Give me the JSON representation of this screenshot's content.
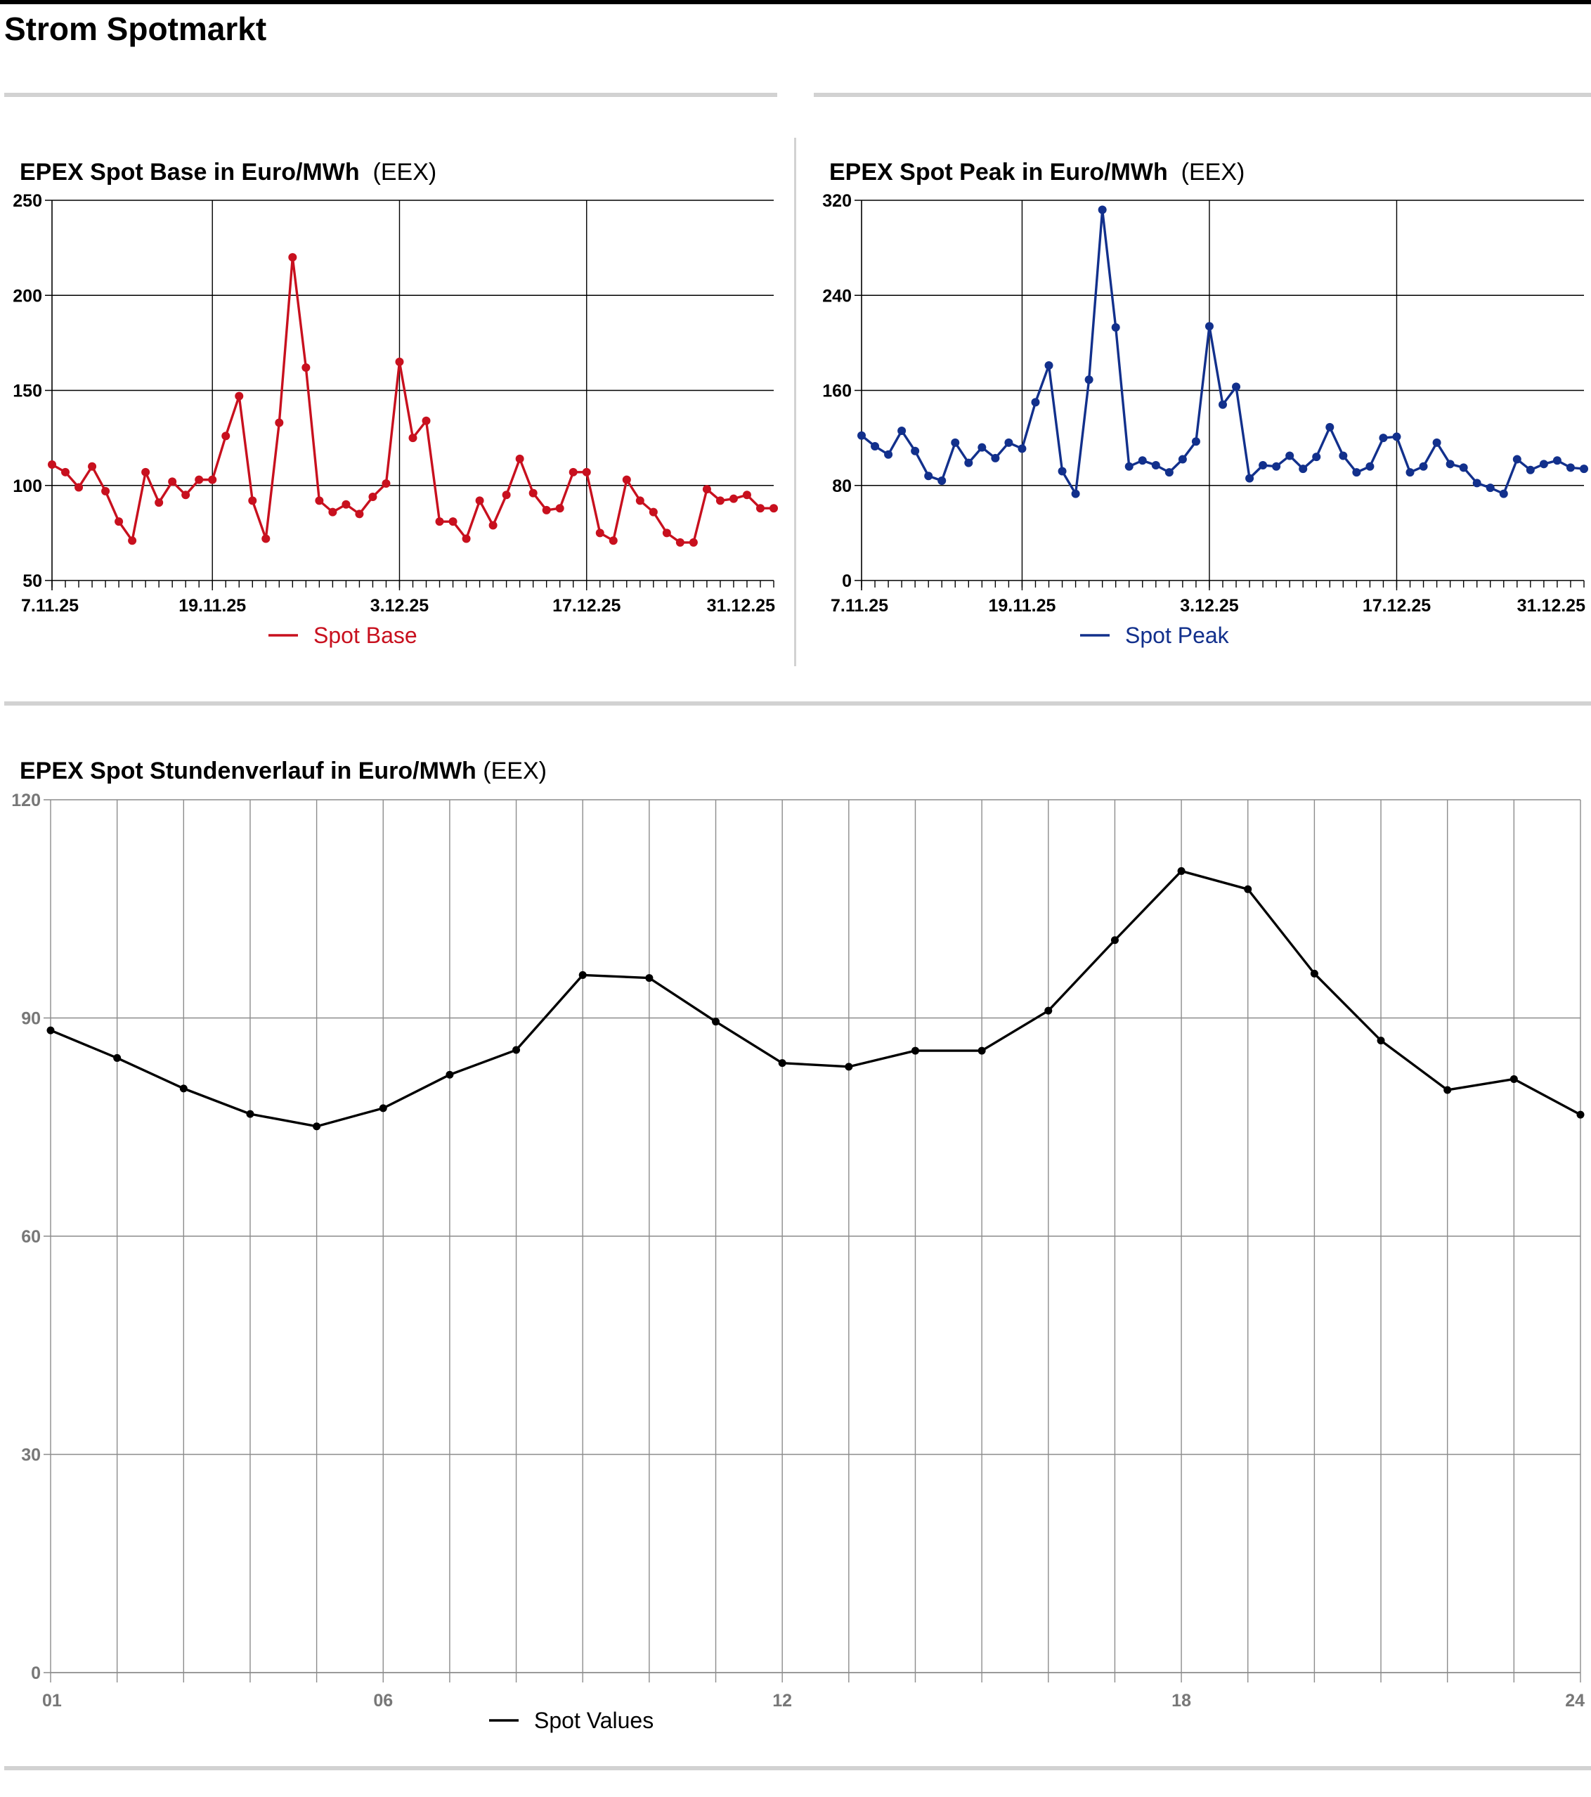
{
  "page_title": "Strom Spotmarkt",
  "colors": {
    "base": "#c8101e",
    "peak": "#12308c",
    "hourly": "#000000"
  },
  "chart_data": [
    {
      "id": "base",
      "type": "line",
      "title": "EPEX Spot Base in Euro/MWh",
      "source": "(EEX)",
      "x_tick_labels": [
        "7.11.25",
        "19.11.25",
        "3.12.25",
        "17.12.25",
        "31.12.25"
      ],
      "x_tick_index": [
        0,
        12,
        26,
        40,
        54
      ],
      "ylim": [
        50,
        250
      ],
      "yticks": [
        50,
        100,
        150,
        200,
        250
      ],
      "legend_position": "bottom",
      "series": [
        {
          "name": "Spot Base",
          "values": [
            111,
            107,
            99,
            110,
            97,
            81,
            71,
            107,
            91,
            102,
            95,
            103,
            103,
            126,
            147,
            92,
            72,
            133,
            220,
            162,
            92,
            86,
            90,
            85,
            94,
            101,
            165,
            125,
            134,
            81,
            81,
            72,
            92,
            79,
            95,
            114,
            96,
            87,
            88,
            107,
            107,
            75,
            71,
            103,
            92,
            86,
            75,
            70,
            70,
            98,
            92,
            93,
            95,
            88,
            88
          ]
        }
      ]
    },
    {
      "id": "peak",
      "type": "line",
      "title": "EPEX Spot Peak in Euro/MWh",
      "source": "(EEX)",
      "x_tick_labels": [
        "7.11.25",
        "19.11.25",
        "3.12.25",
        "17.12.25",
        "31.12.25"
      ],
      "x_tick_index": [
        0,
        12,
        26,
        40,
        54
      ],
      "ylim": [
        0,
        320
      ],
      "yticks": [
        0,
        80,
        160,
        240,
        320
      ],
      "legend_position": "bottom",
      "series": [
        {
          "name": "Spot Peak",
          "values": [
            122,
            113,
            106,
            126,
            109,
            88,
            84,
            116,
            99,
            112,
            103,
            116,
            111,
            150,
            181,
            92,
            73,
            169,
            312,
            213,
            96,
            101,
            97,
            91,
            102,
            117,
            214,
            148,
            163,
            86,
            97,
            96,
            105,
            94,
            104,
            129,
            105,
            91,
            96,
            120,
            121,
            91,
            96,
            116,
            98,
            95,
            82,
            78,
            73,
            102,
            93,
            98,
            101,
            95,
            94
          ]
        }
      ]
    },
    {
      "id": "hourly",
      "type": "line",
      "title": "EPEX Spot Stundenverlauf in Euro/MWh",
      "source": "(EEX)",
      "x": [
        1,
        2,
        3,
        4,
        5,
        6,
        7,
        8,
        9,
        10,
        11,
        12,
        13,
        14,
        15,
        16,
        17,
        18,
        19,
        20,
        21,
        22,
        23,
        24
      ],
      "x_tick_labels": [
        "01",
        "06",
        "12",
        "18",
        "24"
      ],
      "x_tick_values": [
        1,
        6,
        12,
        18,
        24
      ],
      "ylim": [
        0,
        120
      ],
      "yticks": [
        0,
        30,
        60,
        90,
        120
      ],
      "legend_position": "bottom",
      "series": [
        {
          "name": "Spot Values",
          "values": [
            88.3,
            84.5,
            80.3,
            76.8,
            75.1,
            77.6,
            82.2,
            85.6,
            95.9,
            95.5,
            89.5,
            83.8,
            83.3,
            85.5,
            85.5,
            91.0,
            100.7,
            110.2,
            107.7,
            96.1,
            86.9,
            80.1,
            81.6,
            76.7
          ]
        }
      ]
    }
  ]
}
